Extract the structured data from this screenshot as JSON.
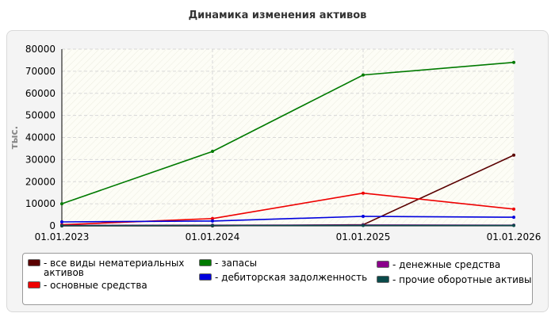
{
  "chart_data": {
    "type": "line",
    "title": "Динамика изменения активов",
    "ylabel": "тыс.",
    "xlabel": "",
    "x": [
      "01.01.2023",
      "01.01.2024",
      "01.01.2025",
      "01.01.2026"
    ],
    "ylim": [
      0,
      80000
    ],
    "yticks": [
      0,
      10000,
      20000,
      30000,
      40000,
      50000,
      60000,
      70000,
      80000
    ],
    "grid": true,
    "legend_position": "bottom",
    "series": [
      {
        "name": "все виды нематериальных активов",
        "color": "#5a0000",
        "values": [
          0,
          0,
          500,
          32000
        ]
      },
      {
        "name": "основные средства",
        "color": "#ee0000",
        "values": [
          500,
          3300,
          14800,
          7600
        ]
      },
      {
        "name": "запасы",
        "color": "#007a00",
        "values": [
          10000,
          33700,
          68300,
          74000
        ]
      },
      {
        "name": "дебиторская задолженность",
        "color": "#0000dd",
        "values": [
          1800,
          2200,
          4300,
          3900
        ]
      },
      {
        "name": "денежные средства",
        "color": "#8b008b",
        "values": [
          200,
          300,
          400,
          300
        ]
      },
      {
        "name": "прочие оборотные активы",
        "color": "#0a4a4a",
        "values": [
          100,
          150,
          200,
          200
        ]
      }
    ]
  },
  "legend": {
    "items": [
      {
        "label": "- все виды нематериальных\nактивов",
        "color": "#5a0000"
      },
      {
        "label": "- основные средства",
        "color": "#ee0000"
      },
      {
        "label": "- запасы",
        "color": "#007a00"
      },
      {
        "label": "- дебиторская задолженность",
        "color": "#0000dd"
      },
      {
        "label": "- денежные средства",
        "color": "#8b008b"
      },
      {
        "label": "- прочие оборотные активы",
        "color": "#0a4a4a"
      }
    ]
  }
}
